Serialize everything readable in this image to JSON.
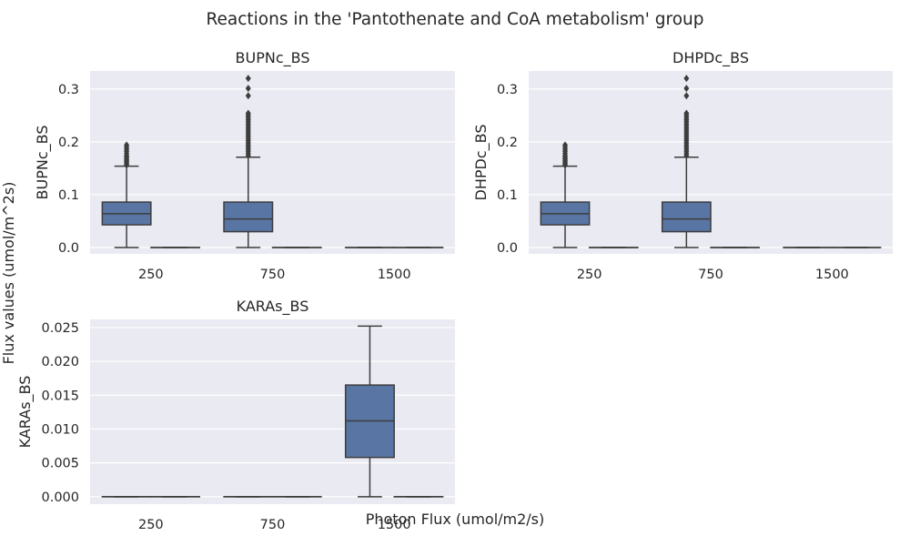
{
  "figure": {
    "title": "Reactions in the 'Pantothenate and CoA metabolism' group",
    "xlabel": "Photon Flux (umol/m2/s)",
    "ylabel": "Flux values (umol/m^2s)"
  },
  "colors": {
    "background": "#eaeaf2",
    "grid": "#ffffff",
    "box_fill": "#5875a4",
    "line": "#3d3d3d"
  },
  "chart_data": [
    {
      "type": "box",
      "title": "BUPNc_BS",
      "ylabel": "BUPNc_BS",
      "categories": [
        "250",
        "750",
        "1500"
      ],
      "ylim": [
        -0.012,
        0.334
      ],
      "yticks": [
        0.0,
        0.1,
        0.2,
        0.3
      ],
      "ytick_labels": [
        "0.0",
        "0.1",
        "0.2",
        "0.3"
      ],
      "boxes": [
        {
          "category": "250",
          "slot": 0,
          "q1": 0.043,
          "median": 0.064,
          "q3": 0.086,
          "whislo": 0.0,
          "whishi": 0.154,
          "fliers": [
            0.156,
            0.159,
            0.162,
            0.165,
            0.168,
            0.171,
            0.174,
            0.178,
            0.182,
            0.186,
            0.19,
            0.194
          ]
        },
        {
          "category": "250",
          "slot": 1,
          "q1": 0.0,
          "median": 0.0,
          "q3": 0.0,
          "whislo": 0.0,
          "whishi": 0.0,
          "fliers": []
        },
        {
          "category": "750",
          "slot": 0,
          "q1": 0.03,
          "median": 0.054,
          "q3": 0.086,
          "whislo": 0.0,
          "whishi": 0.171,
          "fliers": [
            0.174,
            0.178,
            0.182,
            0.186,
            0.19,
            0.194,
            0.198,
            0.202,
            0.206,
            0.21,
            0.214,
            0.218,
            0.222,
            0.226,
            0.23,
            0.234,
            0.238,
            0.242,
            0.246,
            0.25,
            0.254,
            0.287,
            0.301,
            0.32
          ]
        },
        {
          "category": "750",
          "slot": 1,
          "q1": 0.0,
          "median": 0.0,
          "q3": 0.0,
          "whislo": 0.0,
          "whishi": 0.0,
          "fliers": []
        },
        {
          "category": "1500",
          "slot": 0,
          "q1": 0.0,
          "median": 0.0,
          "q3": 0.0,
          "whislo": 0.0,
          "whishi": 0.0,
          "fliers": []
        },
        {
          "category": "1500",
          "slot": 1,
          "q1": 0.0,
          "median": 0.0,
          "q3": 0.0,
          "whislo": 0.0,
          "whishi": 0.0,
          "fliers": []
        }
      ]
    },
    {
      "type": "box",
      "title": "DHPDc_BS",
      "ylabel": "DHPDc_BS",
      "categories": [
        "250",
        "750",
        "1500"
      ],
      "ylim": [
        -0.012,
        0.334
      ],
      "yticks": [
        0.0,
        0.1,
        0.2,
        0.3
      ],
      "ytick_labels": [
        "0.0",
        "0.1",
        "0.2",
        "0.3"
      ],
      "boxes": [
        {
          "category": "250",
          "slot": 0,
          "q1": 0.043,
          "median": 0.064,
          "q3": 0.086,
          "whislo": 0.0,
          "whishi": 0.154,
          "fliers": [
            0.156,
            0.159,
            0.162,
            0.165,
            0.168,
            0.171,
            0.174,
            0.178,
            0.182,
            0.186,
            0.19,
            0.194
          ]
        },
        {
          "category": "250",
          "slot": 1,
          "q1": 0.0,
          "median": 0.0,
          "q3": 0.0,
          "whislo": 0.0,
          "whishi": 0.0,
          "fliers": []
        },
        {
          "category": "750",
          "slot": 0,
          "q1": 0.03,
          "median": 0.054,
          "q3": 0.086,
          "whislo": 0.0,
          "whishi": 0.171,
          "fliers": [
            0.174,
            0.178,
            0.182,
            0.186,
            0.19,
            0.194,
            0.198,
            0.202,
            0.206,
            0.21,
            0.214,
            0.218,
            0.222,
            0.226,
            0.23,
            0.234,
            0.238,
            0.242,
            0.246,
            0.25,
            0.254,
            0.287,
            0.301,
            0.32
          ]
        },
        {
          "category": "750",
          "slot": 1,
          "q1": 0.0,
          "median": 0.0,
          "q3": 0.0,
          "whislo": 0.0,
          "whishi": 0.0,
          "fliers": []
        },
        {
          "category": "1500",
          "slot": 0,
          "q1": 0.0,
          "median": 0.0,
          "q3": 0.0,
          "whislo": 0.0,
          "whishi": 0.0,
          "fliers": []
        },
        {
          "category": "1500",
          "slot": 1,
          "q1": 0.0,
          "median": 0.0,
          "q3": 0.0,
          "whislo": 0.0,
          "whishi": 0.0,
          "fliers": []
        }
      ]
    },
    {
      "type": "box",
      "title": "KARAs_BS",
      "ylabel": "KARAs_BS",
      "categories": [
        "250",
        "750",
        "1500"
      ],
      "ylim": [
        -0.0011,
        0.0262
      ],
      "yticks": [
        0.0,
        0.005,
        0.01,
        0.015,
        0.02,
        0.025
      ],
      "ytick_labels": [
        "0.000",
        "0.005",
        "0.010",
        "0.015",
        "0.020",
        "0.025"
      ],
      "boxes": [
        {
          "category": "250",
          "slot": 0,
          "q1": 0.0,
          "median": 0.0,
          "q3": 0.0,
          "whislo": 0.0,
          "whishi": 0.0,
          "fliers": []
        },
        {
          "category": "250",
          "slot": 1,
          "q1": 0.0,
          "median": 0.0,
          "q3": 0.0,
          "whislo": 0.0,
          "whishi": 0.0,
          "fliers": []
        },
        {
          "category": "750",
          "slot": 0,
          "q1": 0.0,
          "median": 0.0,
          "q3": 0.0,
          "whislo": 0.0,
          "whishi": 0.0,
          "fliers": []
        },
        {
          "category": "750",
          "slot": 1,
          "q1": 0.0,
          "median": 0.0,
          "q3": 0.0,
          "whislo": 0.0,
          "whishi": 0.0,
          "fliers": []
        },
        {
          "category": "1500",
          "slot": 0,
          "q1": 0.0058,
          "median": 0.0112,
          "q3": 0.0165,
          "whislo": 0.0,
          "whishi": 0.0252,
          "fliers": []
        },
        {
          "category": "1500",
          "slot": 1,
          "q1": 0.0,
          "median": 0.0,
          "q3": 0.0,
          "whislo": 0.0,
          "whishi": 0.0,
          "fliers": []
        }
      ]
    }
  ]
}
